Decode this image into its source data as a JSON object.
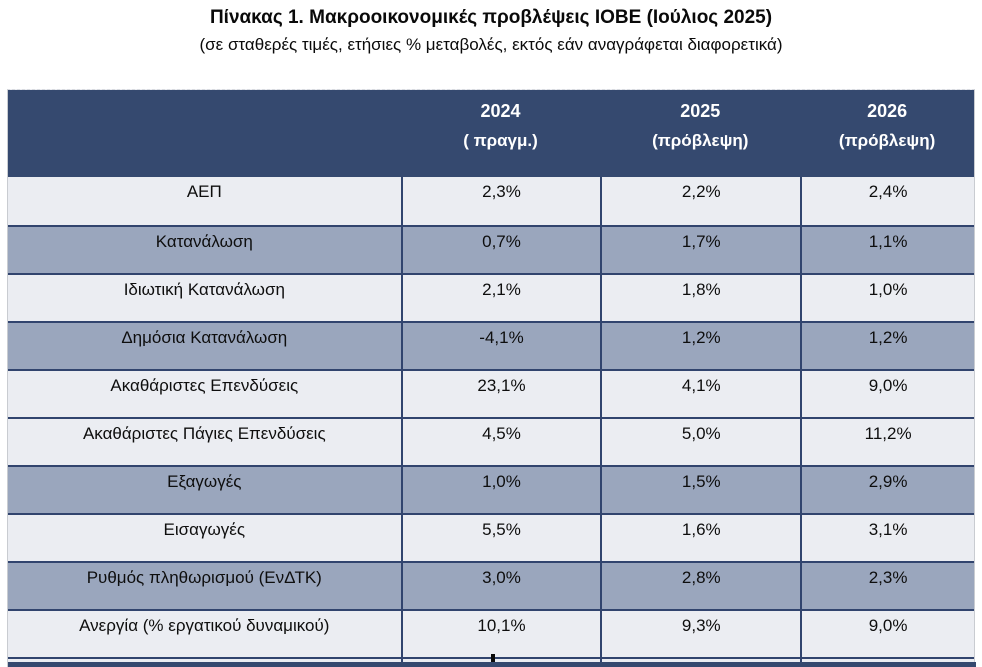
{
  "page": {
    "title": "Πίνακας 1. Μακροοικονομικές προβλέψεις ΙΟΒΕ (Ιούλιος 2025)",
    "subtitle": "(σε σταθερές τιμές, ετήσιες % μεταβολές, εκτός εάν αναγράφεται διαφορετικά)"
  },
  "chart_data": {
    "type": "table",
    "title": "Πίνακας 1. Μακροοικονομικές προβλέψεις ΙΟΒΕ (Ιούλιος 2025)",
    "subtitle": "(σε σταθερές τιμές, ετήσιες % μεταβολές, εκτός εάν αναγράφεται διαφορετικά)",
    "column_headers": [
      {
        "year": "2024",
        "note": "( πραγμ.)"
      },
      {
        "year": "2025",
        "note": "(πρόβλεψη)"
      },
      {
        "year": "2026",
        "note": "(πρόβλεψη)"
      }
    ],
    "rows": [
      {
        "label": "ΑΕΠ",
        "values": [
          "2,3%",
          "2,2%",
          "2,4%"
        ],
        "band": "light"
      },
      {
        "label": "Κατανάλωση",
        "values": [
          "0,7%",
          "1,7%",
          "1,1%"
        ],
        "band": "dark"
      },
      {
        "label": "Ιδιωτική Κατανάλωση",
        "values": [
          "2,1%",
          "1,8%",
          "1,0%"
        ],
        "band": "light"
      },
      {
        "label": "Δημόσια Κατανάλωση",
        "values": [
          "-4,1%",
          "1,2%",
          "1,2%"
        ],
        "band": "dark"
      },
      {
        "label": "Ακαθάριστες Επενδύσεις",
        "values": [
          "23,1%",
          "4,1%",
          "9,0%"
        ],
        "band": "light"
      },
      {
        "label": "Ακαθάριστες Πάγιες Επενδύσεις",
        "values": [
          "4,5%",
          "5,0%",
          "11,2%"
        ],
        "band": "light"
      },
      {
        "label": "Εξαγωγές",
        "values": [
          "1,0%",
          "1,5%",
          "2,9%"
        ],
        "band": "dark"
      },
      {
        "label": "Εισαγωγές",
        "values": [
          "5,5%",
          "1,6%",
          "3,1%"
        ],
        "band": "light"
      },
      {
        "label": "Ρυθμός πληθωρισμού (ΕνΔΤΚ)",
        "values": [
          "3,0%",
          "2,8%",
          "2,3%"
        ],
        "band": "dark"
      },
      {
        "label": "Ανεργία (% εργατικού δυναμικού)",
        "values": [
          "10,1%",
          "9,3%",
          "9,0%"
        ],
        "band": "light"
      }
    ],
    "layout": {
      "banding": "alternating light/dark rows; rows 5 and 6 both light",
      "header_style": "dark navy band with white bold two-line headers",
      "grid": "navy horizontal separators and vertical dividers between value columns only"
    }
  },
  "colors": {
    "header_bg": "#35496F",
    "band_dark": "#9AA6BD",
    "band_light": "#EBEDF2",
    "grid_line": "#31446E",
    "header_text": "#FFFFFF",
    "body_text": "#0E0E0E"
  }
}
